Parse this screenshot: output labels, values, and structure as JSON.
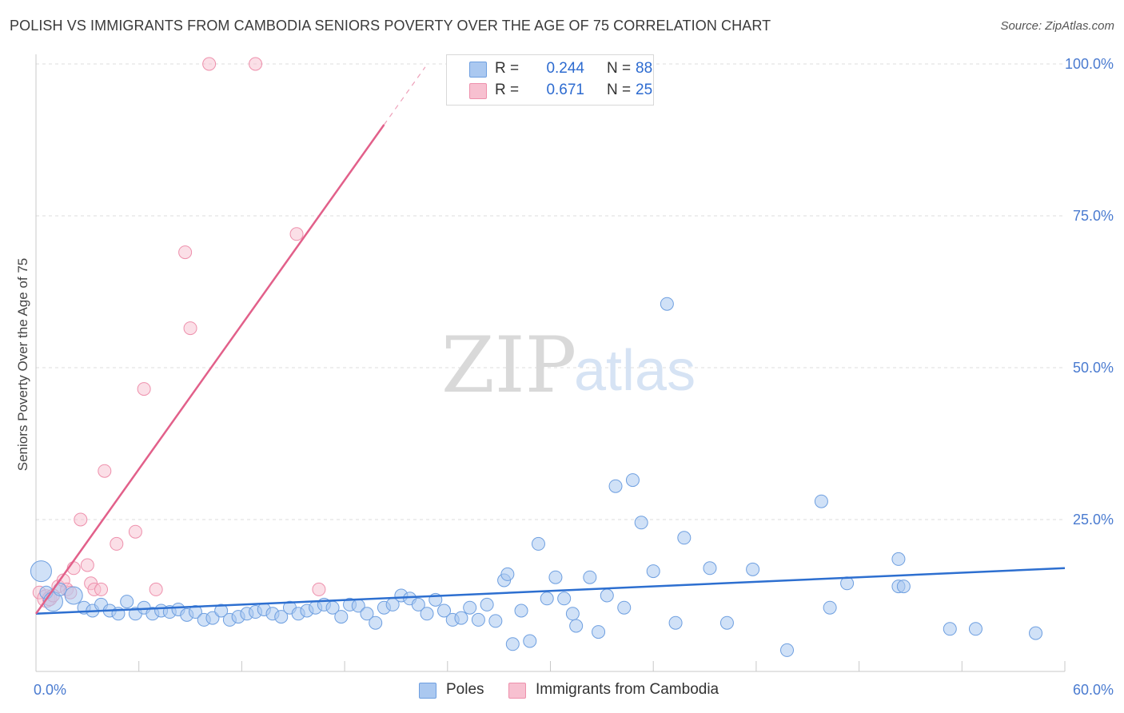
{
  "header": {
    "title": "POLISH VS IMMIGRANTS FROM CAMBODIA SENIORS POVERTY OVER THE AGE OF 75 CORRELATION CHART",
    "source": "Source: ZipAtlas.com"
  },
  "watermark": {
    "zip": "ZIP",
    "atlas": "atlas"
  },
  "legend_top": {
    "rows": [
      {
        "r_label": "R =",
        "r_value": "0.244",
        "n_label": "N =",
        "n_value": "88"
      },
      {
        "r_label": "R =",
        "r_value": "0.671",
        "n_label": "N =",
        "n_value": "25"
      }
    ]
  },
  "legend_bottom": {
    "items": [
      {
        "label": "Poles"
      },
      {
        "label": "Immigrants from Cambodia"
      }
    ]
  },
  "colors": {
    "poles_fill": "#aac8f0",
    "poles_stroke": "#6e9fe0",
    "poles_line": "#2d6fd0",
    "cambodia_fill": "#f7c0d0",
    "cambodia_stroke": "#ee90ac",
    "cambodia_line": "#e2608a",
    "grid": "#dcdcdc"
  },
  "chart_data": {
    "type": "scatter",
    "title": "POLISH VS IMMIGRANTS FROM CAMBODIA SENIORS POVERTY OVER THE AGE OF 75 CORRELATION CHART",
    "xlabel": "",
    "ylabel": "Seniors Poverty Over the Age of 75",
    "xlim": [
      0,
      60
    ],
    "ylim": [
      0,
      105
    ],
    "x_tick_labels": [
      "0.0%",
      "60.0%"
    ],
    "y_ticks": [
      25,
      50,
      75,
      100
    ],
    "y_tick_labels": [
      "25.0%",
      "50.0%",
      "75.0%",
      "100.0%"
    ],
    "legend_position": "top-center",
    "series": [
      {
        "name": "Poles",
        "r": 0.244,
        "n": 88,
        "trend": {
          "x": [
            0,
            60
          ],
          "y": [
            9.5,
            17.0
          ]
        },
        "points": [
          [
            0.3,
            16.5,
            13
          ],
          [
            0.6,
            13.0,
            8
          ],
          [
            1.0,
            11.5,
            12
          ],
          [
            1.4,
            13.5,
            8
          ],
          [
            2.2,
            12.5,
            11
          ],
          [
            2.8,
            10.5,
            8
          ],
          [
            3.3,
            10.0,
            8
          ],
          [
            3.8,
            11.0,
            8
          ],
          [
            4.3,
            10.0,
            8
          ],
          [
            4.8,
            9.5,
            8
          ],
          [
            5.3,
            11.5,
            8
          ],
          [
            5.8,
            9.5,
            8
          ],
          [
            6.3,
            10.5,
            8
          ],
          [
            6.8,
            9.5,
            8
          ],
          [
            7.3,
            10.0,
            8
          ],
          [
            7.8,
            9.8,
            8
          ],
          [
            8.3,
            10.2,
            8
          ],
          [
            8.8,
            9.3,
            8
          ],
          [
            9.3,
            9.8,
            8
          ],
          [
            9.8,
            8.5,
            8
          ],
          [
            10.3,
            8.8,
            8
          ],
          [
            10.8,
            10.0,
            8
          ],
          [
            11.3,
            8.5,
            8
          ],
          [
            11.8,
            9.0,
            8
          ],
          [
            12.3,
            9.5,
            8
          ],
          [
            12.8,
            9.8,
            8
          ],
          [
            13.3,
            10.2,
            8
          ],
          [
            13.8,
            9.5,
            8
          ],
          [
            14.3,
            9.0,
            8
          ],
          [
            14.8,
            10.5,
            8
          ],
          [
            15.3,
            9.5,
            8
          ],
          [
            15.8,
            10.0,
            8
          ],
          [
            16.3,
            10.5,
            8
          ],
          [
            16.8,
            11.0,
            8
          ],
          [
            17.3,
            10.5,
            8
          ],
          [
            17.8,
            9.0,
            8
          ],
          [
            18.3,
            11.0,
            8
          ],
          [
            18.8,
            10.8,
            8
          ],
          [
            19.3,
            9.5,
            8
          ],
          [
            19.8,
            8.0,
            8
          ],
          [
            20.3,
            10.5,
            8
          ],
          [
            20.8,
            11.0,
            8
          ],
          [
            21.3,
            12.5,
            8
          ],
          [
            21.8,
            12.0,
            8
          ],
          [
            22.3,
            11.0,
            8
          ],
          [
            22.8,
            9.5,
            8
          ],
          [
            23.3,
            11.8,
            8
          ],
          [
            23.8,
            10.0,
            8
          ],
          [
            24.3,
            8.5,
            8
          ],
          [
            24.8,
            8.8,
            8
          ],
          [
            25.3,
            10.5,
            8
          ],
          [
            25.8,
            8.5,
            8
          ],
          [
            26.3,
            11.0,
            8
          ],
          [
            26.8,
            8.3,
            8
          ],
          [
            27.3,
            15.0,
            8
          ],
          [
            27.5,
            16.0,
            8
          ],
          [
            27.8,
            4.5,
            8
          ],
          [
            28.3,
            10.0,
            8
          ],
          [
            28.8,
            5.0,
            8
          ],
          [
            29.3,
            21.0,
            8
          ],
          [
            29.8,
            12.0,
            8
          ],
          [
            30.3,
            15.5,
            8
          ],
          [
            30.8,
            12.0,
            8
          ],
          [
            31.3,
            9.5,
            8
          ],
          [
            31.5,
            7.5,
            8
          ],
          [
            32.3,
            15.5,
            8
          ],
          [
            32.8,
            6.5,
            8
          ],
          [
            33.3,
            12.5,
            8
          ],
          [
            33.8,
            30.5,
            8
          ],
          [
            34.3,
            10.5,
            8
          ],
          [
            34.8,
            31.5,
            8
          ],
          [
            35.3,
            24.5,
            8
          ],
          [
            36.0,
            16.5,
            8
          ],
          [
            36.8,
            60.5,
            8
          ],
          [
            37.3,
            8.0,
            8
          ],
          [
            37.8,
            22.0,
            8
          ],
          [
            39.3,
            17.0,
            8
          ],
          [
            40.3,
            8.0,
            8
          ],
          [
            41.8,
            16.8,
            8
          ],
          [
            43.8,
            3.5,
            8
          ],
          [
            45.8,
            28.0,
            8
          ],
          [
            46.3,
            10.5,
            8
          ],
          [
            47.3,
            14.5,
            8
          ],
          [
            50.3,
            18.5,
            8
          ],
          [
            50.3,
            14.0,
            8
          ],
          [
            50.6,
            14.0,
            8
          ],
          [
            53.3,
            7.0,
            8
          ],
          [
            54.8,
            7.0,
            8
          ],
          [
            58.3,
            6.3,
            8
          ]
        ]
      },
      {
        "name": "Immigrants from Cambodia",
        "r": 0.671,
        "n": 25,
        "trend": {
          "x": [
            0,
            20.3
          ],
          "y": [
            9.5,
            90.0
          ],
          "dashed_to": {
            "x": 22.7,
            "y": 99.5
          }
        },
        "points": [
          [
            0.2,
            13.0,
            8
          ],
          [
            0.6,
            12.0,
            11
          ],
          [
            0.8,
            12.0,
            9
          ],
          [
            1.3,
            14.0,
            8
          ],
          [
            1.6,
            15.0,
            8
          ],
          [
            1.8,
            13.5,
            8
          ],
          [
            2.0,
            13.0,
            8
          ],
          [
            2.2,
            17.0,
            8
          ],
          [
            2.6,
            25.0,
            8
          ],
          [
            3.0,
            17.5,
            8
          ],
          [
            3.2,
            14.5,
            8
          ],
          [
            3.4,
            13.5,
            8
          ],
          [
            3.8,
            13.5,
            8
          ],
          [
            4.0,
            33.0,
            8
          ],
          [
            4.7,
            21.0,
            8
          ],
          [
            5.8,
            23.0,
            8
          ],
          [
            6.3,
            46.5,
            8
          ],
          [
            7.0,
            13.5,
            8
          ],
          [
            8.7,
            69.0,
            8
          ],
          [
            9.0,
            56.5,
            8
          ],
          [
            10.1,
            100.0,
            8
          ],
          [
            12.8,
            100.0,
            8
          ],
          [
            15.2,
            72.0,
            8
          ],
          [
            16.5,
            13.5,
            8
          ],
          [
            1.0,
            12.5,
            8
          ]
        ]
      }
    ]
  }
}
